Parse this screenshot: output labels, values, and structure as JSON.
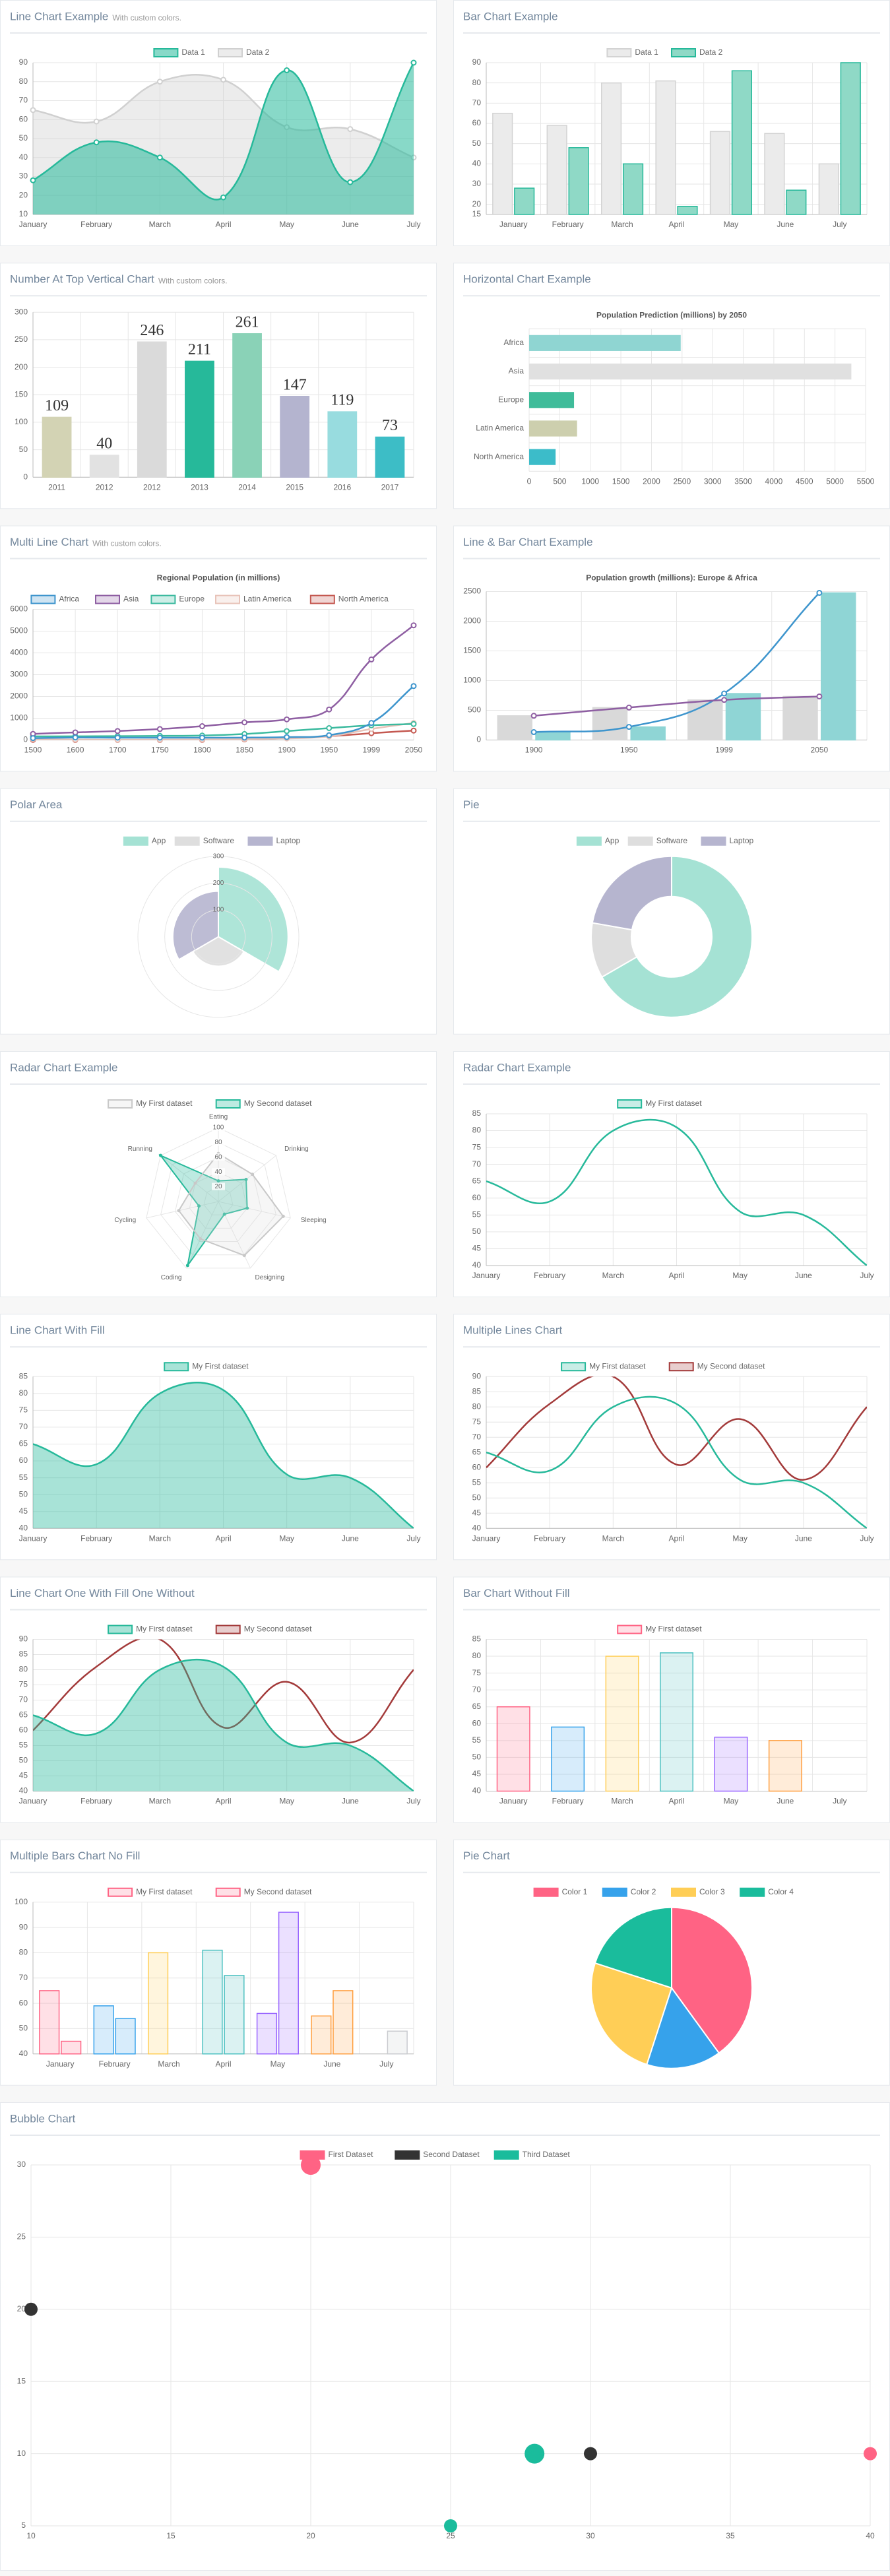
{
  "chart_data": [
    {
      "type": "line",
      "title": "Line Chart Example",
      "subtitle": "With custom colors.",
      "categories": [
        "January",
        "February",
        "March",
        "April",
        "May",
        "June",
        "July"
      ],
      "series": [
        {
          "name": "Data 1",
          "color": "#26b99a",
          "fill": "rgba(38,185,154,0.55)",
          "values": [
            28,
            48,
            40,
            19,
            86,
            27,
            90
          ]
        },
        {
          "name": "Data 2",
          "color": "#d0d0d0",
          "fill": "rgba(200,200,200,0.35)",
          "values": [
            65,
            59,
            80,
            81,
            56,
            55,
            40
          ]
        }
      ],
      "ylim": [
        10,
        90
      ],
      "yticks": [
        10,
        20,
        30,
        40,
        50,
        60,
        70,
        80,
        90
      ],
      "grid": true,
      "legend": "top",
      "smooth": true,
      "points": true
    },
    {
      "type": "bar",
      "title": "Bar Chart Example",
      "categories": [
        "January",
        "February",
        "March",
        "April",
        "May",
        "June",
        "July"
      ],
      "series": [
        {
          "name": "Data 1",
          "color": "#d3d3d3",
          "fill": "#ebebeb",
          "values": [
            65,
            59,
            80,
            81,
            56,
            55,
            40
          ]
        },
        {
          "name": "Data 2",
          "color": "#26b99a",
          "fill": "#8fd9c6",
          "values": [
            28,
            48,
            40,
            19,
            86,
            27,
            90
          ]
        }
      ],
      "ylim": [
        15,
        90
      ],
      "yticks": [
        15,
        20,
        30,
        40,
        50,
        60,
        70,
        80,
        90
      ],
      "grid": true,
      "legend": "top"
    },
    {
      "type": "bar",
      "title": "Number At Top Vertical Chart",
      "subtitle": "With custom colors.",
      "categories": [
        "2011",
        "2012",
        "2012",
        "2013",
        "2014",
        "2015",
        "2016",
        "2017"
      ],
      "values": [
        109,
        40,
        246,
        211,
        261,
        147,
        119,
        73
      ],
      "colors": [
        "#d3d3b4",
        "#e2e2e2",
        "#dadada",
        "#26b99a",
        "#8ad2b7",
        "#b4b4cf",
        "#98dcdf",
        "#3dbdc6"
      ],
      "ylim": [
        0,
        300
      ],
      "yticks": [
        0,
        50,
        100,
        150,
        200,
        250,
        300
      ],
      "grid": true,
      "data_labels": true
    },
    {
      "type": "bar",
      "horizontal": true,
      "title": "Horizontal Chart Example",
      "chart_title": "Population Prediction (millions) by 2050",
      "categories": [
        "Africa",
        "Asia",
        "Europe",
        "Latin America",
        "North America"
      ],
      "values": [
        2478,
        5267,
        734,
        784,
        433
      ],
      "colors": [
        "#8fd5d2",
        "#e0e0e0",
        "#3fbc9a",
        "#cdcfae",
        "#3cbcc9"
      ],
      "xlim": [
        0,
        5500
      ],
      "xticks": [
        0,
        500,
        1000,
        1500,
        2000,
        2500,
        3000,
        3500,
        4000,
        4500,
        5000,
        5500
      ],
      "grid": true
    },
    {
      "type": "line",
      "title": "Multi Line Chart",
      "subtitle": "With custom colors.",
      "chart_title": "Regional Population (in millions)",
      "categories": [
        "1500",
        "1600",
        "1700",
        "1750",
        "1800",
        "1850",
        "1900",
        "1950",
        "1999",
        "2050"
      ],
      "series": [
        {
          "name": "Africa",
          "color": "#3e95cd",
          "values": [
            86,
            114,
            106,
            106,
            107,
            111,
            133,
            221,
            783,
            2478
          ]
        },
        {
          "name": "Asia",
          "color": "#8e5ea2",
          "values": [
            282,
            350,
            411,
            502,
            635,
            809,
            947,
            1402,
            3700,
            5267
          ]
        },
        {
          "name": "Europe",
          "color": "#3cba9f",
          "values": [
            168,
            170,
            178,
            190,
            203,
            276,
            408,
            547,
            675,
            734
          ]
        },
        {
          "name": "Latin America",
          "color": "#e8c3b9",
          "values": [
            40,
            20,
            10,
            16,
            24,
            38,
            74,
            167,
            508,
            784
          ]
        },
        {
          "name": "North America",
          "color": "#c45850",
          "values": [
            6,
            3,
            2,
            2,
            7,
            26,
            82,
            172,
            312,
            433
          ]
        }
      ],
      "ylim": [
        0,
        6000
      ],
      "yticks": [
        0,
        1000,
        2000,
        3000,
        4000,
        5000,
        6000
      ],
      "grid": true,
      "legend": "top",
      "smooth": true,
      "points": true
    },
    {
      "type": "combo",
      "title": "Line & Bar Chart Example",
      "chart_title": "Population growth (millions): Europe & Africa",
      "categories": [
        "1900",
        "1950",
        "1999",
        "2050"
      ],
      "series": [
        {
          "kind": "line",
          "color": "#8e5ea2",
          "values": [
            408,
            547,
            675,
            734
          ]
        },
        {
          "kind": "line",
          "color": "#3e95cd",
          "values": [
            133,
            221,
            783,
            2478
          ]
        },
        {
          "kind": "bar",
          "color": "#d9d9d9",
          "values": [
            408,
            547,
            675,
            734
          ]
        },
        {
          "kind": "bar",
          "color": "#8fd5d5",
          "values": [
            133,
            221,
            783,
            2478
          ]
        }
      ],
      "ylim": [
        0,
        2500
      ],
      "yticks": [
        0,
        500,
        1000,
        1500,
        2000,
        2500
      ],
      "grid": true,
      "smooth": true,
      "points": true
    },
    {
      "type": "polar",
      "title": "Polar Area",
      "categories": [
        "App",
        "Software",
        "Laptop"
      ],
      "values": [
        260,
        110,
        170
      ],
      "colors": [
        "#a5e2d4",
        "#dedede",
        "#b6b5cf"
      ],
      "rlim": [
        0,
        300
      ],
      "rticks": [
        100,
        200,
        300
      ],
      "legend": "top"
    },
    {
      "type": "doughnut",
      "title": "Pie",
      "categories": [
        "App",
        "Software",
        "Laptop"
      ],
      "values": [
        300,
        50,
        100
      ],
      "colors": [
        "#a5e2d4",
        "#dedede",
        "#b6b5cf"
      ],
      "legend": "top"
    },
    {
      "type": "radar",
      "title": "Radar Chart Example",
      "categories": [
        "Eating",
        "Drinking",
        "Sleeping",
        "Designing",
        "Coding",
        "Cycling",
        "Running"
      ],
      "series": [
        {
          "name": "My First dataset",
          "color": "#c8c8c8",
          "fill": "rgba(220,220,220,0.25)",
          "values": [
            65,
            59,
            90,
            81,
            56,
            55,
            40
          ]
        },
        {
          "name": "My Second dataset",
          "color": "#26b99a",
          "fill": "rgba(38,185,154,0.3)",
          "values": [
            28,
            48,
            40,
            19,
            96,
            27,
            100
          ]
        }
      ],
      "rlim": [
        0,
        100
      ],
      "rticks": [
        20,
        40,
        60,
        80,
        100
      ],
      "legend": "top"
    },
    {
      "type": "line",
      "title": "Radar Chart Example",
      "categories": [
        "January",
        "February",
        "March",
        "April",
        "May",
        "June",
        "July"
      ],
      "series": [
        {
          "name": "My First dataset",
          "color": "#26b99a",
          "values": [
            65,
            59,
            80,
            81,
            56,
            55,
            40
          ]
        }
      ],
      "ylim": [
        40,
        85
      ],
      "yticks": [
        40,
        45,
        50,
        55,
        60,
        65,
        70,
        75,
        80,
        85
      ],
      "grid": true,
      "legend": "top",
      "smooth": true
    },
    {
      "type": "line",
      "title": "Line Chart With Fill",
      "categories": [
        "January",
        "February",
        "March",
        "April",
        "May",
        "June",
        "July"
      ],
      "series": [
        {
          "name": "My First dataset",
          "color": "#26b99a",
          "fill": "rgba(38,185,154,0.4)",
          "values": [
            65,
            59,
            80,
            81,
            56,
            55,
            40
          ]
        }
      ],
      "ylim": [
        40,
        85
      ],
      "yticks": [
        40,
        45,
        50,
        55,
        60,
        65,
        70,
        75,
        80,
        85
      ],
      "grid": true,
      "legend": "top",
      "smooth": true
    },
    {
      "type": "line",
      "title": "Multiple Lines Chart",
      "categories": [
        "January",
        "February",
        "March",
        "April",
        "May",
        "June",
        "July"
      ],
      "series": [
        {
          "name": "My First dataset",
          "color": "#26b99a",
          "values": [
            65,
            59,
            80,
            81,
            56,
            55,
            40
          ]
        },
        {
          "name": "My Second dataset",
          "color": "#a33a3a",
          "values": [
            60,
            81,
            90,
            61,
            76,
            56,
            80
          ]
        }
      ],
      "ylim": [
        40,
        90
      ],
      "yticks": [
        40,
        45,
        50,
        55,
        60,
        65,
        70,
        75,
        80,
        85,
        90
      ],
      "grid": true,
      "legend": "top",
      "smooth": true
    },
    {
      "type": "line",
      "title": "Line Chart One With Fill One Without",
      "categories": [
        "January",
        "February",
        "March",
        "April",
        "May",
        "June",
        "July"
      ],
      "series": [
        {
          "name": "My First dataset",
          "color": "#26b99a",
          "fill": "rgba(38,185,154,0.4)",
          "values": [
            65,
            59,
            80,
            81,
            56,
            55,
            40
          ]
        },
        {
          "name": "My Second dataset",
          "color": "#a33a3a",
          "values": [
            60,
            81,
            90,
            61,
            76,
            56,
            80
          ]
        }
      ],
      "ylim": [
        40,
        90
      ],
      "yticks": [
        40,
        45,
        50,
        55,
        60,
        65,
        70,
        75,
        80,
        85,
        90
      ],
      "grid": true,
      "legend": "top",
      "smooth": true
    },
    {
      "type": "bar",
      "title": "Bar Chart Without Fill",
      "categories": [
        "January",
        "February",
        "March",
        "April",
        "May",
        "June",
        "July"
      ],
      "series": [
        {
          "name": "My First dataset",
          "values": [
            65,
            59,
            80,
            81,
            56,
            55,
            40
          ],
          "colors": [
            "#ff6384",
            "#36a2eb",
            "#ffce56",
            "#4bc0c0",
            "#9966ff",
            "#ff9f40",
            "#c9cbcf"
          ],
          "fills": [
            "rgba(255,99,132,0.2)",
            "rgba(54,162,235,0.2)",
            "rgba(255,206,86,0.2)",
            "rgba(75,192,192,0.2)",
            "rgba(153,102,255,0.2)",
            "rgba(255,159,64,0.2)",
            "rgba(201,203,207,0.2)"
          ]
        }
      ],
      "ylim": [
        40,
        85
      ],
      "yticks": [
        40,
        45,
        50,
        55,
        60,
        65,
        70,
        75,
        80,
        85
      ],
      "grid": true,
      "legend": "top"
    },
    {
      "type": "bar",
      "title": "Multiple Bars Chart No Fill",
      "categories": [
        "January",
        "February",
        "March",
        "April",
        "May",
        "June",
        "July"
      ],
      "series": [
        {
          "name": "My First dataset",
          "values": [
            65,
            59,
            80,
            81,
            56,
            55,
            40
          ],
          "colors": [
            "#ff6384",
            "#36a2eb",
            "#ffce56",
            "#4bc0c0",
            "#9966ff",
            "#ff9f40",
            "#c9cbcf"
          ],
          "fills": [
            "rgba(255,99,132,0.2)",
            "rgba(54,162,235,0.2)",
            "rgba(255,206,86,0.2)",
            "rgba(75,192,192,0.2)",
            "rgba(153,102,255,0.2)",
            "rgba(255,159,64,0.2)",
            "rgba(201,203,207,0.2)"
          ]
        },
        {
          "name": "My Second dataset",
          "values": [
            45,
            54,
            40,
            71,
            96,
            65,
            49
          ],
          "colors": [
            "#ff6384",
            "#36a2eb",
            "#ffce56",
            "#4bc0c0",
            "#9966ff",
            "#ff9f40",
            "#c9cbcf"
          ],
          "fills": [
            "rgba(255,99,132,0.2)",
            "rgba(54,162,235,0.2)",
            "rgba(255,206,86,0.2)",
            "rgba(75,192,192,0.2)",
            "rgba(153,102,255,0.2)",
            "rgba(255,159,64,0.2)",
            "rgba(201,203,207,0.2)"
          ]
        }
      ],
      "ylim": [
        40,
        100
      ],
      "yticks": [
        40,
        50,
        60,
        70,
        80,
        90,
        100
      ],
      "grid": true,
      "legend": "top"
    },
    {
      "type": "pie",
      "title": "Pie Chart",
      "categories": [
        "Color 1",
        "Color 2",
        "Color 3",
        "Color 4"
      ],
      "values": [
        40,
        15,
        25,
        20
      ],
      "colors": [
        "#ff6384",
        "#36a2eb",
        "#ffce56",
        "#1abc9c"
      ],
      "legend": "top"
    },
    {
      "type": "bubble",
      "title": "Bubble Chart",
      "series": [
        {
          "name": "First Dataset",
          "color": "#ff6384",
          "x": [
            20,
            40
          ],
          "values": [
            30,
            10
          ],
          "r": [
            15,
            10
          ]
        },
        {
          "name": "Second Dataset",
          "color": "#333333",
          "x": [
            10,
            30
          ],
          "values": [
            20,
            10
          ],
          "r": [
            10,
            10
          ]
        },
        {
          "name": "Third Dataset",
          "color": "#1abc9c",
          "x": [
            28,
            25
          ],
          "values": [
            10,
            5
          ],
          "r": [
            15,
            10
          ]
        }
      ],
      "xlim": [
        10,
        40
      ],
      "xticks": [
        10,
        15,
        20,
        25,
        30,
        35,
        40
      ],
      "ylim": [
        5,
        30
      ],
      "yticks": [
        5,
        10,
        15,
        20,
        25,
        30
      ],
      "grid": true,
      "legend": "top"
    }
  ]
}
